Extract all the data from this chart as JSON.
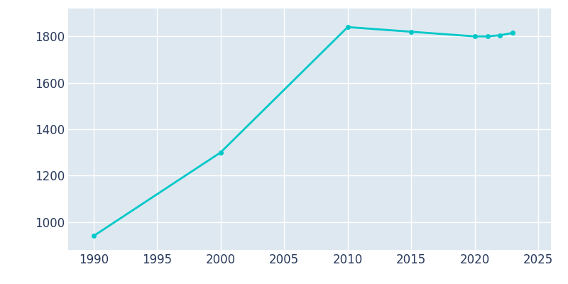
{
  "years": [
    1990,
    2000,
    2010,
    2015,
    2020,
    2021,
    2022,
    2023
  ],
  "population": [
    940,
    1300,
    1840,
    1820,
    1800,
    1800,
    1805,
    1815
  ],
  "line_color": "#00C8C8",
  "marker": "o",
  "marker_size": 4,
  "line_width": 2,
  "xlabel": "",
  "ylabel": "",
  "xlim": [
    1988,
    2026
  ],
  "ylim": [
    880,
    1920
  ],
  "xticks": [
    1990,
    1995,
    2000,
    2005,
    2010,
    2015,
    2020,
    2025
  ],
  "yticks": [
    1000,
    1200,
    1400,
    1600,
    1800
  ],
  "background_color": "#ffffff",
  "plot_bg_color": "#dde8f0",
  "grid_color": "#ffffff",
  "tick_label_color": "#2a3a5c",
  "tick_fontsize": 12,
  "spine_visible": false
}
